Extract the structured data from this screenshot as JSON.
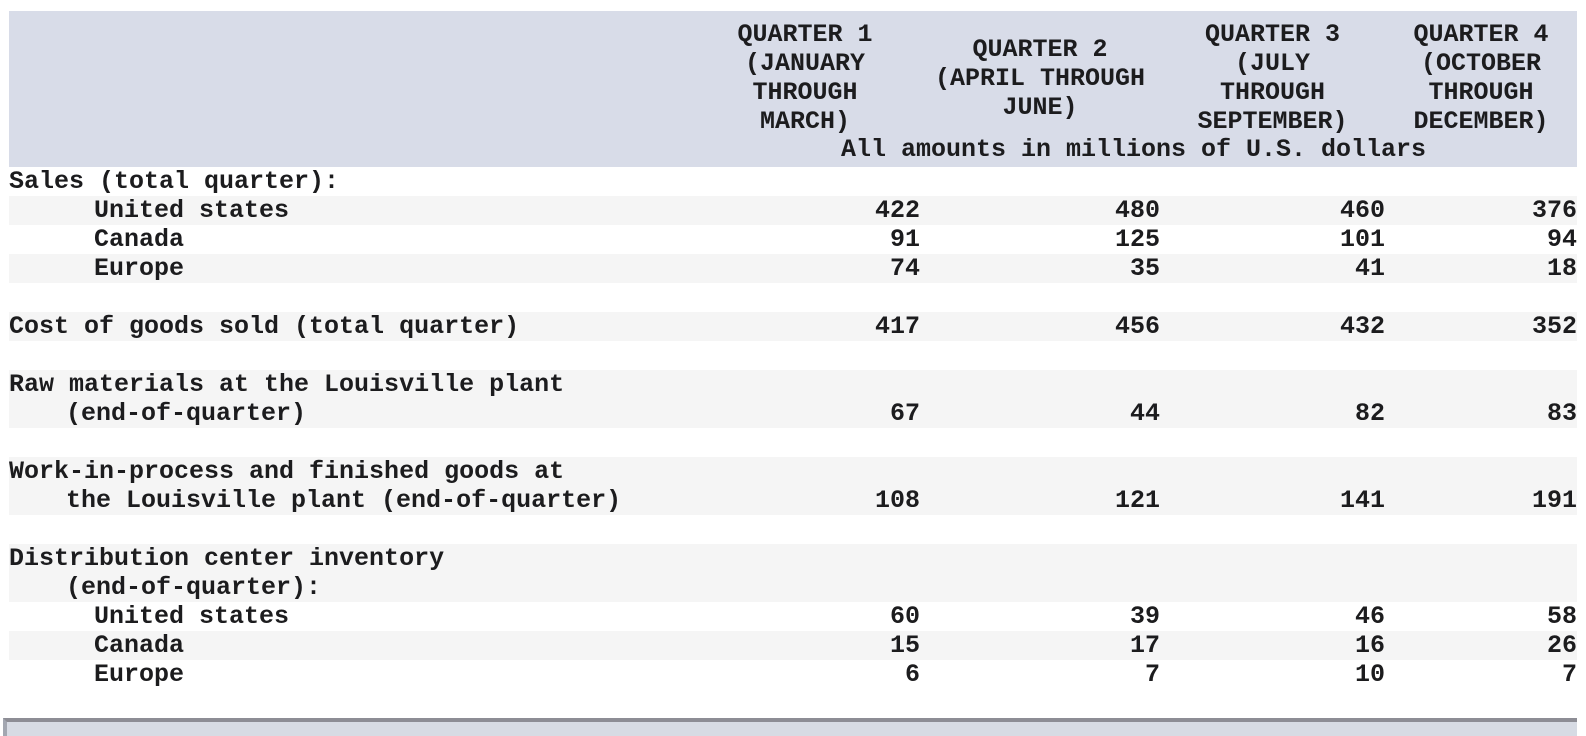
{
  "colors": {
    "header_band": "#d8dce8",
    "row_stripe": "#f5f5f5",
    "text": "#1c1c1e",
    "bar_fill": "#d7dbe4",
    "bar_border": "#8d8d95"
  },
  "table": {
    "unit_note": "All amounts in millions of U.S. dollars",
    "column_headers": [
      "QUARTER 1\n(JANUARY\nTHROUGH\nMARCH)",
      "QUARTER 2\n(APRIL THROUGH\nJUNE)",
      "QUARTER 3\n(JULY\nTHROUGH\nSEPTEMBER)",
      "QUARTER 4\n(OCTOBER\nTHROUGH\nDECEMBER)"
    ],
    "rows": [
      {
        "label": "Sales (total quarter):",
        "indent": 0,
        "shade": false,
        "values": [
          "",
          "",
          "",
          ""
        ]
      },
      {
        "label": "United states",
        "indent": 1,
        "shade": true,
        "values": [
          "422",
          "480",
          "460",
          "376"
        ]
      },
      {
        "label": "Canada",
        "indent": 1,
        "shade": false,
        "values": [
          "91",
          "125",
          "101",
          "94"
        ]
      },
      {
        "label": "Europe",
        "indent": 1,
        "shade": true,
        "values": [
          "74",
          "35",
          "41",
          "18"
        ]
      },
      {
        "label": "",
        "indent": 0,
        "shade": false,
        "values": [
          "",
          "",
          "",
          ""
        ]
      },
      {
        "label": "Cost of goods sold (total quarter)",
        "indent": 0,
        "shade": true,
        "values": [
          "417",
          "456",
          "432",
          "352"
        ]
      },
      {
        "label": "",
        "indent": 0,
        "shade": false,
        "values": [
          "",
          "",
          "",
          ""
        ]
      },
      {
        "label": "Raw materials at the Louisville plant",
        "label2": "(end-of-quarter)",
        "indent": 0,
        "shade": true,
        "values": [
          "67",
          "44",
          "82",
          "83"
        ]
      },
      {
        "label": "",
        "indent": 0,
        "shade": false,
        "values": [
          "",
          "",
          "",
          ""
        ]
      },
      {
        "label": "Work-in-process and finished goods at",
        "label2": "the Louisville plant (end-of-quarter)",
        "indent": 0,
        "shade": true,
        "values": [
          "108",
          "121",
          "141",
          "191"
        ]
      },
      {
        "label": "",
        "indent": 0,
        "shade": false,
        "values": [
          "",
          "",
          "",
          ""
        ]
      },
      {
        "label": "Distribution center inventory",
        "label2": "(end-of-quarter):",
        "indent": 0,
        "shade": true,
        "values": [
          "",
          "",
          "",
          ""
        ]
      },
      {
        "label": "United states",
        "indent": 1,
        "shade": false,
        "values": [
          "60",
          "39",
          "46",
          "58"
        ]
      },
      {
        "label": "Canada",
        "indent": 1,
        "shade": true,
        "values": [
          "15",
          "17",
          "16",
          "26"
        ]
      },
      {
        "label": "Europe",
        "indent": 1,
        "shade": false,
        "values": [
          "6",
          "7",
          "10",
          "7"
        ]
      }
    ]
  }
}
